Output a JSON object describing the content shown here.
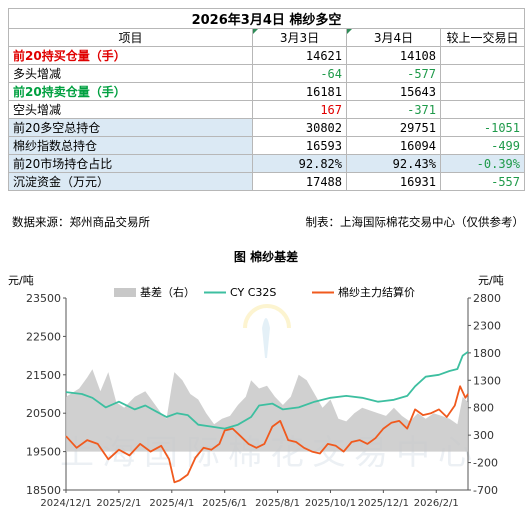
{
  "table": {
    "title": "2026年3月4日  棉纱多空",
    "headers": [
      "项目",
      "3月3日",
      "3月4日",
      "较上一交易日"
    ],
    "rows": [
      {
        "label": "前20持买仓量（手）",
        "d1": "14621",
        "d2": "14108",
        "chg": ""
      },
      {
        "label": "多头增减",
        "d1": "-64",
        "d2": "-577",
        "chg": ""
      },
      {
        "label": "前20持卖仓量（手）",
        "d1": "16181",
        "d2": "15643",
        "chg": ""
      },
      {
        "label": "空头增减",
        "d1": "167",
        "d2": "-371",
        "chg": ""
      },
      {
        "label": "前20多空总持仓",
        "d1": "30802",
        "d2": "29751",
        "chg": "-1051"
      },
      {
        "label": "棉纱指数总持仓",
        "d1": "16593",
        "d2": "16094",
        "chg": "-499"
      },
      {
        "label": "前20市场持仓占比",
        "d1": "92.82%",
        "d2": "92.43%",
        "chg": "-0.39%"
      },
      {
        "label": "沉淀资金（万元）",
        "d1": "17488",
        "d2": "16931",
        "chg": "-557"
      }
    ]
  },
  "source_note": "数据来源：郑州商品交易所",
  "maker_note": "制表：上海国际棉花交易中心（仅供参考）",
  "watermark": "上海国际棉花交易中心",
  "colors": {
    "basis": "#c8c8c8",
    "cy": "#3dbfa0",
    "main": "#f05a1e",
    "blue_row": "#dbe9f4",
    "red": "#e00000",
    "green": "#1f9a4a"
  },
  "chart_data": {
    "type": "line",
    "title": "图 棉纱基差",
    "left_unit": "元/吨",
    "right_unit": "元/吨",
    "left_ylim": [
      18500,
      23500
    ],
    "left_ticks": [
      18500,
      19500,
      20500,
      21500,
      22500,
      23500
    ],
    "right_ylim": [
      -700,
      2800
    ],
    "right_ticks": [
      -700,
      -200,
      300,
      800,
      1300,
      1800,
      2300,
      2800
    ],
    "x_ticks": [
      "2024/12/1",
      "2025/2/1",
      "2025/4/1",
      "2025/6/1",
      "2025/8/1",
      "2025/10/1",
      "2025/12/1",
      "2026/2/1"
    ],
    "x_range_months": [
      0,
      15.2
    ],
    "x_tick_months": [
      0,
      2,
      4,
      6,
      8,
      10,
      12,
      14
    ],
    "legend": [
      "基差（右）",
      "CY C32S",
      "棉纱主力结算价"
    ],
    "series": [
      {
        "name": "基差（右）",
        "axis": "right",
        "type": "area",
        "x": [
          0,
          0.5,
          0.8,
          1.0,
          1.3,
          1.6,
          1.9,
          2.2,
          2.6,
          3.0,
          3.3,
          3.6,
          3.8,
          4.0,
          4.1,
          4.4,
          4.7,
          5.0,
          5.3,
          5.6,
          5.9,
          6.2,
          6.5,
          6.8,
          7.0,
          7.3,
          7.6,
          7.9,
          8.2,
          8.5,
          8.8,
          9.1,
          9.4,
          9.7,
          10.0,
          10.3,
          10.6,
          10.9,
          11.2,
          11.5,
          11.8,
          12.1,
          12.4,
          12.7,
          13.0,
          13.3,
          13.6,
          13.9,
          14.2,
          14.5,
          14.8,
          15.0,
          15.2
        ],
        "y": [
          1000,
          1150,
          1350,
          1500,
          1100,
          1450,
          900,
          800,
          1000,
          1100,
          900,
          700,
          600,
          1200,
          1450,
          1300,
          1050,
          950,
          700,
          500,
          600,
          650,
          850,
          1000,
          1300,
          1150,
          1200,
          1000,
          850,
          1000,
          1400,
          1300,
          1050,
          800,
          950,
          600,
          550,
          700,
          800,
          750,
          700,
          650,
          800,
          650,
          550,
          700,
          600,
          700,
          650,
          600,
          500,
          1000,
          900
        ]
      },
      {
        "name": "CY C32S",
        "axis": "left",
        "type": "line",
        "x": [
          0,
          0.6,
          1.0,
          1.5,
          2.0,
          2.6,
          3.0,
          3.4,
          3.8,
          4.2,
          4.6,
          5.0,
          5.5,
          6.0,
          6.5,
          7.0,
          7.3,
          7.8,
          8.2,
          8.8,
          9.4,
          10.0,
          10.6,
          11.2,
          11.8,
          12.4,
          12.9,
          13.2,
          13.6,
          14.1,
          14.5,
          14.8,
          15.0,
          15.2
        ],
        "y": [
          21050,
          21000,
          20900,
          20650,
          20800,
          20600,
          20700,
          20550,
          20400,
          20500,
          20450,
          20200,
          20150,
          20100,
          20200,
          20400,
          20700,
          20750,
          20600,
          20650,
          20800,
          20900,
          20950,
          20900,
          20800,
          20850,
          20950,
          21200,
          21450,
          21500,
          21600,
          21650,
          22000,
          22100
        ]
      },
      {
        "name": "棉纱主力结算价",
        "axis": "left",
        "type": "line",
        "x": [
          0,
          0.4,
          0.8,
          1.2,
          1.6,
          2.0,
          2.4,
          2.8,
          3.2,
          3.6,
          3.9,
          4.1,
          4.3,
          4.6,
          4.9,
          5.2,
          5.5,
          5.8,
          6.0,
          6.3,
          6.6,
          6.9,
          7.2,
          7.5,
          7.8,
          8.1,
          8.4,
          8.7,
          9.0,
          9.3,
          9.6,
          9.9,
          10.2,
          10.5,
          10.8,
          11.1,
          11.4,
          11.7,
          12.0,
          12.3,
          12.6,
          12.9,
          13.2,
          13.5,
          13.8,
          14.1,
          14.4,
          14.7,
          14.9,
          15.1,
          15.2
        ],
        "y": [
          19900,
          19600,
          19800,
          19700,
          19300,
          19550,
          19400,
          19700,
          19500,
          19650,
          19300,
          18700,
          18750,
          18900,
          19350,
          19600,
          19550,
          19700,
          20050,
          20100,
          19900,
          19700,
          19600,
          19700,
          20150,
          20300,
          19800,
          19750,
          19600,
          19500,
          19450,
          19700,
          19650,
          19500,
          19750,
          19800,
          19700,
          19850,
          20100,
          20250,
          20300,
          20100,
          20600,
          20450,
          20500,
          20600,
          20400,
          20700,
          21200,
          20900,
          21000
        ]
      }
    ]
  }
}
